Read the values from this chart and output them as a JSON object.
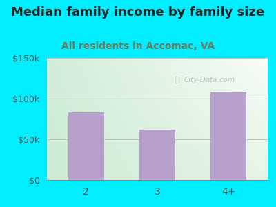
{
  "title": "Median family income by family size",
  "subtitle": "All residents in Accomac, VA",
  "categories": [
    "2",
    "3",
    "4+"
  ],
  "values": [
    83000,
    62000,
    108000
  ],
  "bar_color": "#b8a0cc",
  "background_outer": "#00eeff",
  "title_color": "#222222",
  "subtitle_color": "#6b7a5a",
  "axis_label_color": "#555555",
  "ytick_labels": [
    "$0",
    "$50k",
    "$100k",
    "$150k"
  ],
  "ytick_values": [
    0,
    50000,
    100000,
    150000
  ],
  "ylim": [
    0,
    150000
  ],
  "watermark": "City-Data.com",
  "title_fontsize": 13,
  "subtitle_fontsize": 10
}
